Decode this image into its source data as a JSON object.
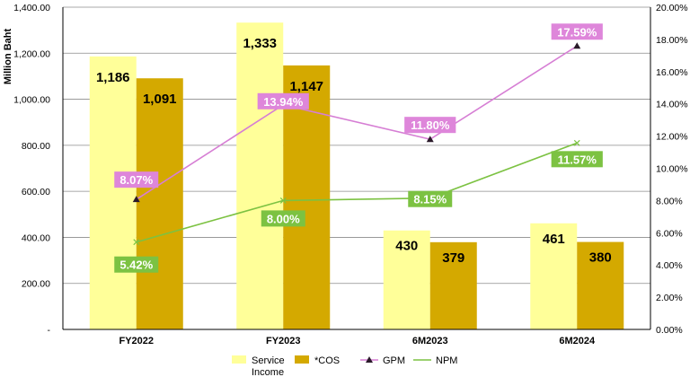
{
  "chart_data": {
    "type": "bar",
    "categories": [
      "FY2022",
      "FY2023",
      "6M2023",
      "6M2024"
    ],
    "series": [
      {
        "name": "Service Income",
        "type": "bar",
        "axis": "left",
        "values": [
          1186,
          1333,
          430,
          461
        ],
        "labels": [
          "1,186",
          "1,333",
          "430",
          "461"
        ],
        "color": "#FFFF99"
      },
      {
        "name": "*COS",
        "type": "bar",
        "axis": "left",
        "values": [
          1091,
          1147,
          379,
          380
        ],
        "labels": [
          "1,091",
          "1,147",
          "379",
          "380"
        ],
        "color": "#D4A900"
      },
      {
        "name": "GPM",
        "type": "line",
        "axis": "right",
        "values": [
          8.07,
          13.94,
          11.8,
          17.59
        ],
        "labels": [
          "8.07%",
          "13.94%",
          "11.80%",
          "17.59%"
        ],
        "color": "#D67ED4",
        "marker": "triangle"
      },
      {
        "name": "NPM",
        "type": "line",
        "axis": "right",
        "values": [
          5.42,
          8.0,
          8.15,
          11.57
        ],
        "labels": [
          "5.42%",
          "8.00%",
          "8.15%",
          "11.57%"
        ],
        "color": "#7CC242",
        "marker": "x"
      }
    ],
    "ylabel": "Million Baht",
    "ylim": [
      0,
      1400
    ],
    "yticks": [
      "-",
      "200.00",
      "400.00",
      "600.00",
      "800.00",
      "1,000.00",
      "1,200.00",
      "1,400.00"
    ],
    "y2lim": [
      0,
      20
    ],
    "y2ticks": [
      "0.00%",
      "2.00%",
      "4.00%",
      "6.00%",
      "8.00%",
      "10.00%",
      "12.00%",
      "14.00%",
      "16.00%",
      "18.00%",
      "20.00%"
    ],
    "grid": true,
    "legend": "bottom",
    "legend_labels": [
      "Service Income",
      "*COS",
      "GPM",
      "NPM"
    ],
    "colors": {
      "gpm_label_bg": "#DE86DA",
      "npm_label_bg": "#7CC242",
      "grid": "#8C8C8C"
    }
  }
}
